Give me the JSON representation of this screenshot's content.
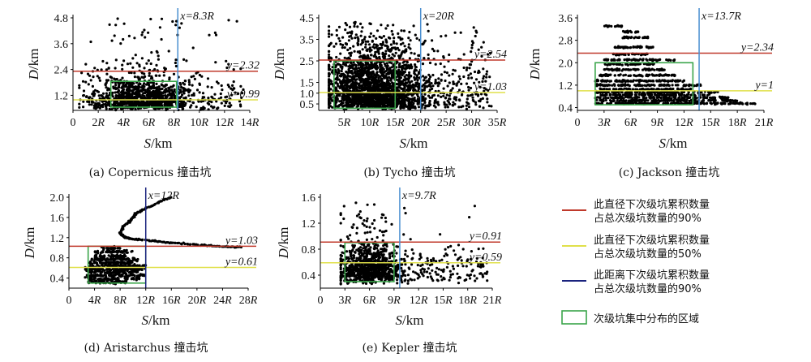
{
  "colors": {
    "p90_diameter": "#c0392b",
    "p50_diameter": "#e0e04a",
    "p90_distance": "#1a237e",
    "p90_distance_light": "#4a8fd0",
    "region": "#3aa54a",
    "points": "#000000"
  },
  "legend": {
    "items": [
      {
        "key": "p90_diameter",
        "line1": "此直径下次级坑累积数量",
        "line2": "占总次级坑数量的90%"
      },
      {
        "key": "p50_diameter",
        "line1": "此直径下次级坑累积数量",
        "line2": "占总次级坑数量的50%"
      },
      {
        "key": "p90_distance",
        "line1": "此距离下次级坑累积数量",
        "line2": "占总次级坑数量的90%"
      },
      {
        "key": "region",
        "line1": "次级坑集中分布的区域",
        "line2": ""
      }
    ]
  },
  "chart_data": [
    {
      "id": "a",
      "type": "scatter",
      "caption": "(a) Copernicus 撞击坑",
      "xlabel": "S/km",
      "ylabel": "D/km",
      "xlim": [
        0,
        14
      ],
      "ylim": [
        0.5,
        4.8
      ],
      "xticks": [
        0,
        2,
        4,
        6,
        8,
        10,
        12,
        14
      ],
      "xtick_labels": [
        "0",
        "2R",
        "4R",
        "6R",
        "8R",
        "10R",
        "12R",
        "14R"
      ],
      "yticks": [
        1.2,
        2.4,
        3.6,
        4.8
      ],
      "ytick_labels": [
        "1.2",
        "2.4",
        "3.6",
        "4.8"
      ],
      "vline": {
        "x": 8.3,
        "label": "x=8.3R",
        "color_key": "p90_distance_light"
      },
      "hlines": [
        {
          "y": 2.32,
          "label": "y=2.32",
          "color_key": "p90_diameter"
        },
        {
          "y": 0.99,
          "label": "y=0.99",
          "color_key": "p50_diameter"
        }
      ],
      "region": {
        "x": [
          3,
          8.2
        ],
        "y": [
          0.65,
          1.85
        ]
      },
      "cloud": {
        "x_center": 5.5,
        "x_spread": 3.2,
        "x_range": [
          0.5,
          13.5
        ],
        "y_min": 0.5,
        "y_max": 4.8,
        "y_scale": 0.75,
        "n": 1200
      }
    },
    {
      "id": "b",
      "type": "scatter",
      "caption": "(b) Tycho 撞击坑",
      "xlabel": "S/km",
      "ylabel": "D/km",
      "xlim": [
        0,
        35
      ],
      "ylim": [
        0.2,
        4.5
      ],
      "xticks": [
        5,
        10,
        15,
        20,
        25,
        30,
        35
      ],
      "xtick_labels": [
        "5R",
        "10R",
        "15R",
        "20R",
        "25R",
        "30R",
        "35R"
      ],
      "yticks": [
        0.5,
        1.0,
        1.5,
        2.5,
        3.5,
        4.5
      ],
      "ytick_labels": [
        "0.5",
        "1.0",
        "1.5",
        "2.5",
        "3.5",
        "4.5"
      ],
      "vline": {
        "x": 20,
        "label": "x=20R",
        "color_key": "p90_distance_light"
      },
      "hlines": [
        {
          "y": 2.54,
          "label": "y=2.54",
          "color_key": "p90_diameter"
        },
        {
          "y": 1.03,
          "label": "y=1.03",
          "color_key": "p50_diameter"
        }
      ],
      "region": {
        "x": [
          3,
          15
        ],
        "y": [
          0.3,
          2.5
        ]
      },
      "cloud": {
        "x_center": 11,
        "x_spread": 8,
        "x_range": [
          2,
          34
        ],
        "y_min": 0.25,
        "y_max": 4.3,
        "y_scale": 1.3,
        "n": 2400
      }
    },
    {
      "id": "c",
      "type": "scatter",
      "caption": "(c) Jackson 撞击坑",
      "xlabel": "S/km",
      "ylabel": "D/km",
      "xlim": [
        0,
        21
      ],
      "ylim": [
        0.3,
        3.6
      ],
      "xticks": [
        0,
        3,
        6,
        9,
        12,
        15,
        18,
        21
      ],
      "xtick_labels": [
        "0",
        "3R",
        "6R",
        "9R",
        "12R",
        "15R",
        "18R",
        "21R"
      ],
      "yticks": [
        0.4,
        1.2,
        2.0,
        2.8,
        3.6
      ],
      "ytick_labels": [
        "0.4",
        "1.2",
        "2.0",
        "2.8",
        "3.6"
      ],
      "vline": {
        "x": 13.7,
        "label": "x=13.7R",
        "color_key": "p90_distance_light"
      },
      "hlines": [
        {
          "y": 2.34,
          "label": "y=2.34",
          "color_key": "p90_diameter"
        },
        {
          "y": 1.0,
          "label": "y=1",
          "color_key": "p50_diameter"
        }
      ],
      "region": {
        "x": [
          2,
          13
        ],
        "y": [
          0.5,
          2.0
        ]
      },
      "bands": [
        {
          "y": 0.55,
          "x": [
            2,
            20
          ]
        },
        {
          "y": 0.65,
          "x": [
            2,
            18
          ]
        },
        {
          "y": 0.75,
          "x": [
            2,
            17
          ]
        },
        {
          "y": 0.85,
          "x": [
            2.5,
            15
          ]
        },
        {
          "y": 0.95,
          "x": [
            2,
            16
          ]
        },
        {
          "y": 1.05,
          "x": [
            2.5,
            13
          ]
        },
        {
          "y": 1.2,
          "x": [
            2,
            14
          ]
        },
        {
          "y": 1.35,
          "x": [
            2,
            12
          ]
        },
        {
          "y": 1.55,
          "x": [
            2.5,
            11
          ]
        },
        {
          "y": 1.75,
          "x": [
            3,
            10
          ]
        },
        {
          "y": 1.95,
          "x": [
            3,
            9
          ]
        },
        {
          "y": 2.1,
          "x": [
            3,
            11
          ]
        },
        {
          "y": 2.3,
          "x": [
            4,
            8
          ]
        },
        {
          "y": 2.55,
          "x": [
            4,
            9
          ]
        },
        {
          "y": 2.9,
          "x": [
            5,
            8
          ]
        },
        {
          "y": 3.1,
          "x": [
            5,
            7
          ]
        },
        {
          "y": 3.3,
          "x": [
            3,
            5
          ]
        }
      ]
    },
    {
      "id": "d",
      "type": "scatter",
      "caption": "(d) Aristarchus 撞击坑",
      "xlabel": "S/km",
      "ylabel": "D/km",
      "xlim": [
        0,
        28
      ],
      "ylim": [
        0.2,
        2.0
      ],
      "xticks": [
        0,
        4,
        8,
        12,
        16,
        20,
        24,
        28
      ],
      "xtick_labels": [
        "0",
        "4R",
        "8R",
        "12R",
        "16R",
        "20R",
        "24R",
        "28R"
      ],
      "yticks": [
        0.4,
        0.8,
        1.2,
        1.6,
        2.0
      ],
      "ytick_labels": [
        "0.4",
        "0.8",
        "1.2",
        "1.6",
        "2.0"
      ],
      "vline": {
        "x": 12,
        "label": "x=12R",
        "color_key": "p90_distance"
      },
      "hlines": [
        {
          "y": 1.03,
          "label": "y=1.03",
          "color_key": "p90_diameter"
        },
        {
          "y": 0.61,
          "label": "y=0.61",
          "color_key": "p50_diameter"
        }
      ],
      "region": {
        "x": [
          3,
          12
        ],
        "y": [
          0.3,
          1.03
        ]
      },
      "bands": [
        {
          "y": 0.32,
          "x": [
            3,
            9
          ]
        },
        {
          "y": 0.38,
          "x": [
            3,
            11
          ]
        },
        {
          "y": 0.45,
          "x": [
            2.5,
            12
          ]
        },
        {
          "y": 0.52,
          "x": [
            3,
            11
          ]
        },
        {
          "y": 0.58,
          "x": [
            2.5,
            12
          ]
        },
        {
          "y": 0.64,
          "x": [
            3,
            12
          ]
        },
        {
          "y": 0.7,
          "x": [
            3,
            10
          ]
        },
        {
          "y": 0.77,
          "x": [
            3.5,
            11
          ]
        },
        {
          "y": 0.84,
          "x": [
            4,
            9
          ]
        },
        {
          "y": 0.92,
          "x": [
            4,
            10
          ]
        },
        {
          "y": 0.99,
          "x": [
            5,
            8
          ]
        }
      ],
      "arc": {
        "x": [
          16,
          14,
          12,
          10.5,
          10,
          9.5,
          8.5,
          8,
          8.5,
          9.5,
          11,
          13.5,
          16,
          19,
          22,
          25,
          27
        ],
        "y": [
          2.0,
          1.9,
          1.78,
          1.68,
          1.6,
          1.52,
          1.42,
          1.3,
          1.22,
          1.18,
          1.16,
          1.13,
          1.1,
          1.07,
          1.04,
          1.02,
          1.01
        ]
      }
    },
    {
      "id": "e",
      "type": "scatter",
      "caption": "(e) Kepler 撞击坑",
      "xlabel": "S/km",
      "ylabel": "D/km",
      "xlim": [
        0,
        21
      ],
      "ylim": [
        0.2,
        1.6
      ],
      "xticks": [
        0,
        3,
        6,
        9,
        12,
        15,
        18,
        21
      ],
      "xtick_labels": [
        "0",
        "3R",
        "6R",
        "9R",
        "12R",
        "15R",
        "18R",
        "21R"
      ],
      "yticks": [
        0.4,
        0.8,
        1.2,
        1.6
      ],
      "ytick_labels": [
        "0.4",
        "0.8",
        "1.2",
        "1.6"
      ],
      "vline": {
        "x": 9.7,
        "label": "x=9.7R",
        "color_key": "p90_distance_light"
      },
      "hlines": [
        {
          "y": 0.91,
          "label": "y=0.91",
          "color_key": "p90_diameter"
        },
        {
          "y": 0.59,
          "label": "y=0.59",
          "color_key": "p50_diameter"
        }
      ],
      "region": {
        "x": [
          3,
          9
        ],
        "y": [
          0.3,
          0.9
        ]
      },
      "cloud": {
        "x_center": 6,
        "x_spread": 3.2,
        "x_range": [
          2.5,
          20.5
        ],
        "y_min": 0.25,
        "y_max": 1.55,
        "y_scale": 0.25,
        "n": 1100
      }
    }
  ]
}
